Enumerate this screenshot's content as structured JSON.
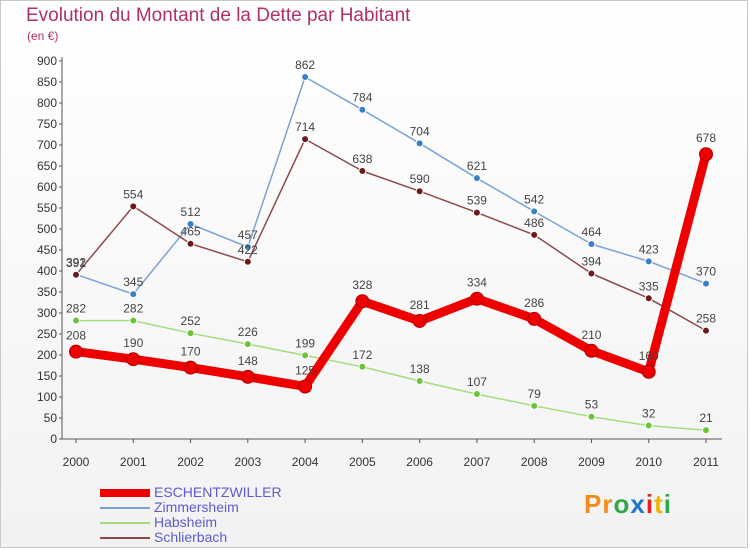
{
  "title": "Evolution du Montant de la Dette par Habitant",
  "subtitle": "(en €)",
  "logo_text": "Proxiti",
  "logo_colors": [
    "#f28c1c",
    "#f28c1c",
    "#2ea84a",
    "#1f78c8",
    "#e2231a",
    "#f0b400",
    "#2ea84a"
  ],
  "chart_data": {
    "type": "line",
    "x": [
      "2000",
      "2001",
      "2002",
      "2003",
      "2004",
      "2005",
      "2006",
      "2007",
      "2008",
      "2009",
      "2010",
      "2011"
    ],
    "ylim": [
      0,
      900
    ],
    "yticks": [
      "0",
      "50",
      "100",
      "150",
      "200",
      "250",
      "300",
      "350",
      "400",
      "450",
      "500",
      "550",
      "600",
      "650",
      "700",
      "750",
      "800",
      "850",
      "900"
    ],
    "grid": false,
    "legend_position": "bottom-left",
    "series": [
      {
        "name": "ESCHENTZWILLER",
        "color": "#ee0000",
        "marker_color": "#ee0000",
        "emphasis": true,
        "values": [
          208,
          190,
          170,
          148,
          125,
          328,
          281,
          334,
          286,
          210,
          160,
          678
        ],
        "labels": [
          "208",
          "190",
          "170",
          "148",
          "125",
          "328",
          "281",
          "334",
          "286",
          "210",
          "160",
          "678"
        ]
      },
      {
        "name": "Zimmersheim",
        "color": "#7aa3d4",
        "marker_color": "#3b7fc4",
        "emphasis": false,
        "values": [
          392,
          345,
          512,
          457,
          862,
          784,
          704,
          621,
          542,
          464,
          423,
          370
        ],
        "labels": [
          "392",
          "345",
          "512",
          "457",
          "862",
          "784",
          "704",
          "621",
          "542",
          "464",
          "423",
          "370"
        ]
      },
      {
        "name": "Habsheim",
        "color": "#a6dc7e",
        "marker_color": "#6cc23a",
        "emphasis": false,
        "values": [
          282,
          282,
          252,
          226,
          199,
          172,
          138,
          107,
          79,
          53,
          32,
          21
        ],
        "labels": [
          "282",
          "282",
          "252",
          "226",
          "199",
          "172",
          "138",
          "107",
          "79",
          "53",
          "32",
          "21"
        ]
      },
      {
        "name": "Schlierbach",
        "color": "#8a4a4a",
        "marker_color": "#6b1a1a",
        "emphasis": false,
        "values": [
          391,
          554,
          465,
          422,
          714,
          638,
          590,
          539,
          486,
          394,
          335,
          258
        ],
        "labels": [
          "391",
          "554",
          "465",
          "422",
          "714",
          "638",
          "590",
          "539",
          "486",
          "394",
          "335",
          "258"
        ]
      }
    ]
  }
}
